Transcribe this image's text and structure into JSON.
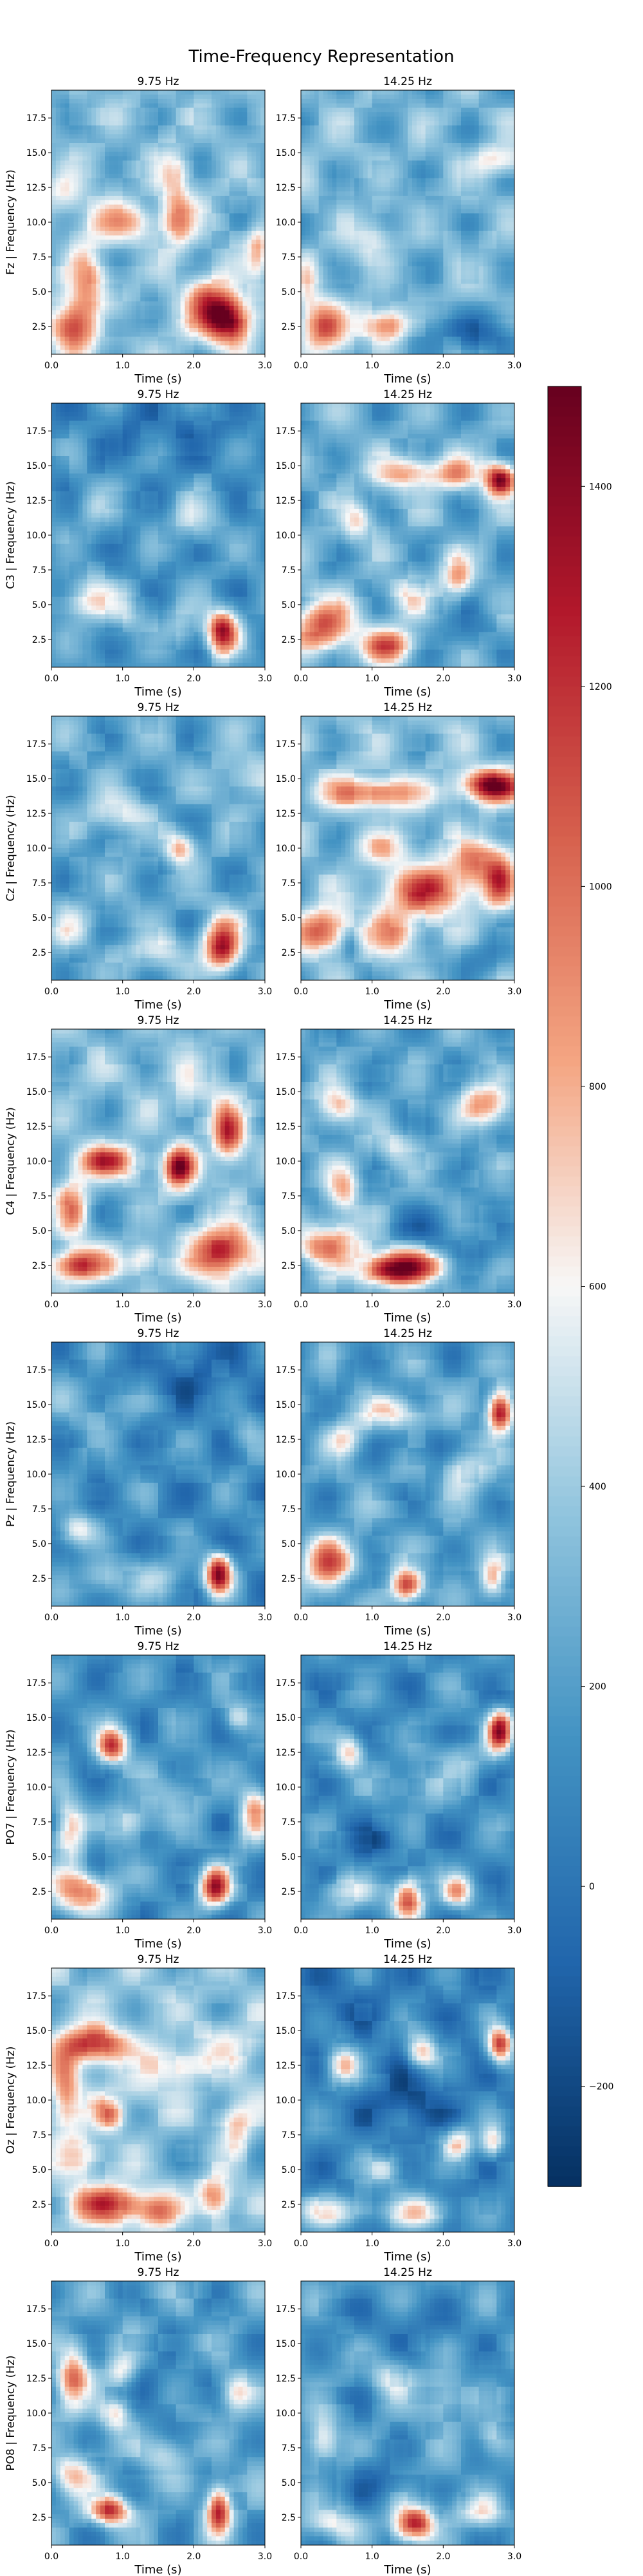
{
  "chart_data": {
    "type": "heatmap",
    "title": "Time-Frequency Representation",
    "channels": [
      "Fz",
      "C3",
      "Cz",
      "C4",
      "Pz",
      "PO7",
      "Oz",
      "PO8"
    ],
    "columns": [
      "9.75 Hz",
      "14.25 Hz"
    ],
    "ylabel_suffix": " | Frequency (Hz)",
    "xlabel": "Time (s)",
    "xlim": [
      0,
      3
    ],
    "ylim": [
      0.5,
      19.5
    ],
    "xticks": [
      0,
      1,
      2,
      3
    ],
    "xtick_labels": [
      "0.0",
      "1.0",
      "2.0",
      "3.0"
    ],
    "yticks": [
      2.5,
      5,
      7.5,
      10,
      12.5,
      15,
      17.5
    ],
    "ytick_labels": [
      "2.5",
      "5.0",
      "7.5",
      "10.0",
      "12.5",
      "15.0",
      "17.5"
    ],
    "colormap": "RdBu_r",
    "colorbar": {
      "vmin": -300,
      "vmax": 1500,
      "ticks": [
        -200,
        0,
        200,
        400,
        600,
        800,
        1000,
        1200,
        1400
      ],
      "tick_labels": [
        "−200",
        "0",
        "200",
        "400",
        "600",
        "800",
        "1000",
        "1200",
        "1400"
      ]
    },
    "panels": [
      {
        "channel": "Fz",
        "column": "9.75 Hz",
        "base": 320,
        "blobs": [
          [
            0.3,
            2.5,
            0.22,
            1.3,
            850
          ],
          [
            0.5,
            5.5,
            0.18,
            2.0,
            550
          ],
          [
            2.2,
            4.0,
            0.25,
            1.5,
            700
          ],
          [
            2.5,
            3.0,
            0.22,
            1.2,
            1050
          ],
          [
            1.0,
            10.0,
            0.4,
            0.9,
            450
          ],
          [
            1.7,
            13.0,
            0.15,
            1.5,
            400
          ],
          [
            1.8,
            10.0,
            0.15,
            1.3,
            550
          ],
          [
            0.8,
            3.0,
            0.3,
            0.9,
            -200
          ],
          [
            2.9,
            8.0,
            0.1,
            1.2,
            450
          ],
          [
            0.2,
            12.0,
            0.2,
            1.0,
            300
          ]
        ]
      },
      {
        "channel": "Fz",
        "column": "14.25 Hz",
        "base": 300,
        "blobs": [
          [
            0.3,
            2.5,
            0.22,
            1.3,
            750
          ],
          [
            1.2,
            2.5,
            0.22,
            0.9,
            800
          ],
          [
            2.7,
            2.0,
            0.35,
            1.1,
            -380
          ],
          [
            1.7,
            2.0,
            0.3,
            1.0,
            -250
          ],
          [
            2.8,
            14.5,
            0.3,
            0.7,
            350
          ],
          [
            1.0,
            9.0,
            0.2,
            1.2,
            280
          ],
          [
            0.1,
            5.5,
            0.1,
            1.5,
            300
          ]
        ]
      },
      {
        "channel": "C3",
        "column": "9.75 Hz",
        "base": 160,
        "blobs": [
          [
            2.4,
            3.0,
            0.15,
            1.1,
            1150
          ],
          [
            0.5,
            5.5,
            0.25,
            1.2,
            450
          ],
          [
            1.0,
            4.5,
            0.2,
            1.0,
            300
          ],
          [
            2.0,
            11.0,
            0.25,
            1.2,
            300
          ],
          [
            0.6,
            12.0,
            0.15,
            1.0,
            250
          ],
          [
            1.8,
            3.5,
            0.2,
            1.0,
            250
          ],
          [
            1.5,
            17.5,
            0.9,
            1.5,
            -150
          ]
        ]
      },
      {
        "channel": "C3",
        "column": "14.25 Hz",
        "base": 260,
        "blobs": [
          [
            0.3,
            3.5,
            0.3,
            1.3,
            850
          ],
          [
            1.2,
            2.0,
            0.25,
            0.9,
            800
          ],
          [
            2.8,
            14.0,
            0.15,
            0.8,
            1200
          ],
          [
            1.5,
            14.5,
            0.35,
            0.8,
            600
          ],
          [
            2.2,
            14.5,
            0.2,
            0.8,
            550
          ],
          [
            2.2,
            7.0,
            0.15,
            1.0,
            600
          ],
          [
            0.8,
            11.0,
            0.15,
            1.0,
            450
          ],
          [
            2.3,
            3.0,
            0.3,
            1.2,
            -200
          ],
          [
            1.5,
            5.5,
            0.2,
            1.0,
            350
          ]
        ]
      },
      {
        "channel": "Cz",
        "column": "9.75 Hz",
        "base": 230,
        "blobs": [
          [
            2.4,
            3.0,
            0.18,
            1.3,
            1100
          ],
          [
            1.8,
            10.0,
            0.15,
            0.8,
            600
          ],
          [
            0.9,
            12.5,
            0.3,
            1.0,
            350
          ],
          [
            0.3,
            4.5,
            0.2,
            1.2,
            300
          ],
          [
            1.5,
            2.5,
            0.3,
            0.8,
            350
          ],
          [
            2.7,
            15.0,
            0.3,
            1.2,
            250
          ]
        ]
      },
      {
        "channel": "Cz",
        "column": "14.25 Hz",
        "base": 320,
        "blobs": [
          [
            2.7,
            14.5,
            0.3,
            0.8,
            1150
          ],
          [
            1.0,
            14.0,
            0.5,
            0.8,
            700
          ],
          [
            0.3,
            4.0,
            0.25,
            1.1,
            800
          ],
          [
            1.8,
            7.0,
            0.4,
            1.2,
            850
          ],
          [
            2.8,
            7.5,
            0.15,
            1.2,
            700
          ],
          [
            2.5,
            9.0,
            0.3,
            1.0,
            600
          ],
          [
            1.3,
            4.0,
            0.25,
            1.2,
            550
          ],
          [
            0.7,
            3.0,
            0.1,
            0.8,
            -250
          ],
          [
            2.5,
            2.0,
            0.4,
            1.0,
            -200
          ],
          [
            1.2,
            10.0,
            0.3,
            0.9,
            350
          ]
        ]
      },
      {
        "channel": "C4",
        "column": "9.75 Hz",
        "base": 320,
        "blobs": [
          [
            1.8,
            9.5,
            0.15,
            1.0,
            1150
          ],
          [
            2.5,
            12.0,
            0.15,
            1.3,
            900
          ],
          [
            0.8,
            10.0,
            0.3,
            0.8,
            850
          ],
          [
            0.4,
            2.5,
            0.3,
            0.8,
            900
          ],
          [
            2.4,
            3.5,
            0.3,
            1.3,
            1000
          ],
          [
            0.3,
            6.5,
            0.15,
            1.5,
            600
          ],
          [
            1.3,
            3.0,
            0.15,
            0.8,
            450
          ],
          [
            1.0,
            6.0,
            0.4,
            0.9,
            -100
          ],
          [
            2.0,
            15.0,
            0.3,
            1.5,
            200
          ]
        ]
      },
      {
        "channel": "C4",
        "column": "14.25 Hz",
        "base": 230,
        "blobs": [
          [
            0.4,
            4.0,
            0.3,
            1.1,
            750
          ],
          [
            1.5,
            2.5,
            0.4,
            0.9,
            900
          ],
          [
            1.2,
            2.0,
            0.3,
            0.7,
            600
          ],
          [
            2.6,
            14.0,
            0.25,
            1.0,
            700
          ],
          [
            0.6,
            8.0,
            0.15,
            1.2,
            550
          ],
          [
            0.5,
            14.0,
            0.2,
            1.0,
            550
          ],
          [
            1.8,
            5.0,
            0.35,
            1.2,
            -250
          ],
          [
            2.5,
            3.0,
            0.25,
            1.0,
            -200
          ],
          [
            1.3,
            11.0,
            0.2,
            1.0,
            300
          ]
        ]
      },
      {
        "channel": "Pz",
        "column": "9.75 Hz",
        "base": 120,
        "blobs": [
          [
            2.35,
            2.8,
            0.13,
            1.0,
            1250
          ],
          [
            0.35,
            6.0,
            0.2,
            0.8,
            450
          ],
          [
            0.7,
            2.5,
            0.2,
            0.8,
            350
          ],
          [
            1.5,
            2.5,
            0.3,
            0.9,
            300
          ],
          [
            2.7,
            13.0,
            0.15,
            1.1,
            250
          ],
          [
            2.0,
            17.0,
            0.6,
            1.8,
            -150
          ],
          [
            0.5,
            15.0,
            0.5,
            1.5,
            200
          ]
        ]
      },
      {
        "channel": "Pz",
        "column": "14.25 Hz",
        "base": 200,
        "blobs": [
          [
            2.8,
            14.5,
            0.12,
            1.0,
            1250
          ],
          [
            0.4,
            3.5,
            0.25,
            1.3,
            850
          ],
          [
            1.5,
            2.0,
            0.15,
            0.8,
            1000
          ],
          [
            2.7,
            2.5,
            0.12,
            1.0,
            600
          ],
          [
            1.3,
            14.5,
            0.3,
            0.8,
            500
          ],
          [
            0.6,
            12.5,
            0.2,
            0.8,
            450
          ],
          [
            2.3,
            10.5,
            0.2,
            1.2,
            400
          ],
          [
            1.7,
            12.0,
            0.5,
            0.8,
            -150
          ],
          [
            0.8,
            2.0,
            0.2,
            0.8,
            -250
          ]
        ]
      },
      {
        "channel": "PO7",
        "column": "9.75 Hz",
        "base": 140,
        "blobs": [
          [
            0.85,
            13.0,
            0.15,
            0.9,
            1050
          ],
          [
            2.3,
            2.8,
            0.15,
            1.0,
            1150
          ],
          [
            0.4,
            2.5,
            0.3,
            1.0,
            850
          ],
          [
            0.25,
            7.0,
            0.15,
            1.6,
            600
          ],
          [
            2.85,
            8.0,
            0.15,
            1.5,
            650
          ],
          [
            1.1,
            7.5,
            0.2,
            1.0,
            400
          ],
          [
            2.6,
            15.0,
            0.15,
            0.8,
            400
          ],
          [
            1.7,
            9.5,
            0.3,
            1.3,
            250
          ]
        ]
      },
      {
        "channel": "PO7",
        "column": "14.25 Hz",
        "base": 130,
        "blobs": [
          [
            2.8,
            14.0,
            0.12,
            1.0,
            1250
          ],
          [
            0.7,
            12.5,
            0.15,
            0.8,
            600
          ],
          [
            1.5,
            2.0,
            0.15,
            1.0,
            1050
          ],
          [
            2.2,
            2.5,
            0.15,
            0.8,
            650
          ],
          [
            0.6,
            2.5,
            0.25,
            0.8,
            400
          ],
          [
            1.6,
            10.0,
            0.3,
            1.0,
            250
          ],
          [
            2.2,
            12.0,
            0.25,
            1.0,
            250
          ],
          [
            1.0,
            6.0,
            0.4,
            1.0,
            -200
          ]
        ]
      },
      {
        "channel": "Oz",
        "column": "9.75 Hz",
        "base": 350,
        "blobs": [
          [
            0.6,
            14.0,
            0.3,
            0.9,
            950
          ],
          [
            0.8,
            2.5,
            0.35,
            0.9,
            900
          ],
          [
            0.2,
            11.0,
            0.15,
            2.0,
            600
          ],
          [
            0.8,
            9.0,
            0.15,
            0.8,
            600
          ],
          [
            1.5,
            2.0,
            0.2,
            0.8,
            550
          ],
          [
            2.3,
            3.0,
            0.15,
            1.0,
            650
          ],
          [
            2.6,
            8.0,
            0.15,
            1.2,
            400
          ],
          [
            0.4,
            6.0,
            0.2,
            1.0,
            450
          ],
          [
            1.7,
            12.5,
            0.3,
            1.0,
            400
          ],
          [
            2.0,
            6.0,
            0.3,
            1.0,
            -100
          ],
          [
            1.2,
            10.5,
            0.2,
            0.8,
            200
          ],
          [
            2.5,
            14.0,
            0.3,
            1.2,
            250
          ]
        ]
      },
      {
        "channel": "Oz",
        "column": "14.25 Hz",
        "base": 80,
        "blobs": [
          [
            2.8,
            14.0,
            0.12,
            0.9,
            1100
          ],
          [
            0.6,
            12.5,
            0.15,
            1.0,
            700
          ],
          [
            1.7,
            13.5,
            0.15,
            0.8,
            700
          ],
          [
            2.2,
            7.0,
            0.15,
            0.8,
            650
          ],
          [
            2.7,
            7.0,
            0.12,
            0.8,
            550
          ],
          [
            0.5,
            2.0,
            0.4,
            0.8,
            500
          ],
          [
            1.7,
            2.0,
            0.3,
            0.8,
            600
          ],
          [
            1.2,
            5.0,
            0.2,
            0.8,
            400
          ],
          [
            1.5,
            10.0,
            0.4,
            1.5,
            -250
          ],
          [
            0.5,
            17.0,
            0.5,
            1.5,
            -100
          ]
        ]
      },
      {
        "channel": "PO8",
        "column": "9.75 Hz",
        "base": 200,
        "blobs": [
          [
            0.8,
            3.0,
            0.2,
            0.7,
            1000
          ],
          [
            2.35,
            3.0,
            0.12,
            1.2,
            1050
          ],
          [
            0.3,
            12.5,
            0.15,
            1.5,
            750
          ],
          [
            0.3,
            5.5,
            0.2,
            1.0,
            550
          ],
          [
            1.0,
            13.0,
            0.15,
            0.9,
            450
          ],
          [
            2.6,
            11.5,
            0.15,
            0.9,
            450
          ],
          [
            1.6,
            7.0,
            0.25,
            1.0,
            350
          ],
          [
            0.9,
            10.0,
            0.15,
            0.8,
            500
          ],
          [
            1.5,
            12.0,
            0.4,
            1.5,
            -150
          ]
        ]
      },
      {
        "channel": "PO8",
        "column": "14.25 Hz",
        "base": 170,
        "blobs": [
          [
            1.6,
            2.0,
            0.2,
            0.9,
            1050
          ],
          [
            0.5,
            2.0,
            0.3,
            0.8,
            400
          ],
          [
            2.5,
            3.0,
            0.25,
            0.8,
            400
          ],
          [
            0.3,
            8.0,
            0.15,
            1.2,
            450
          ],
          [
            2.0,
            11.0,
            0.2,
            1.2,
            350
          ],
          [
            1.3,
            12.5,
            0.2,
            1.0,
            350
          ],
          [
            2.7,
            8.0,
            0.15,
            1.0,
            350
          ],
          [
            1.5,
            16.5,
            0.8,
            1.2,
            -150
          ],
          [
            1.0,
            5.0,
            0.3,
            1.0,
            -200
          ]
        ]
      }
    ]
  }
}
